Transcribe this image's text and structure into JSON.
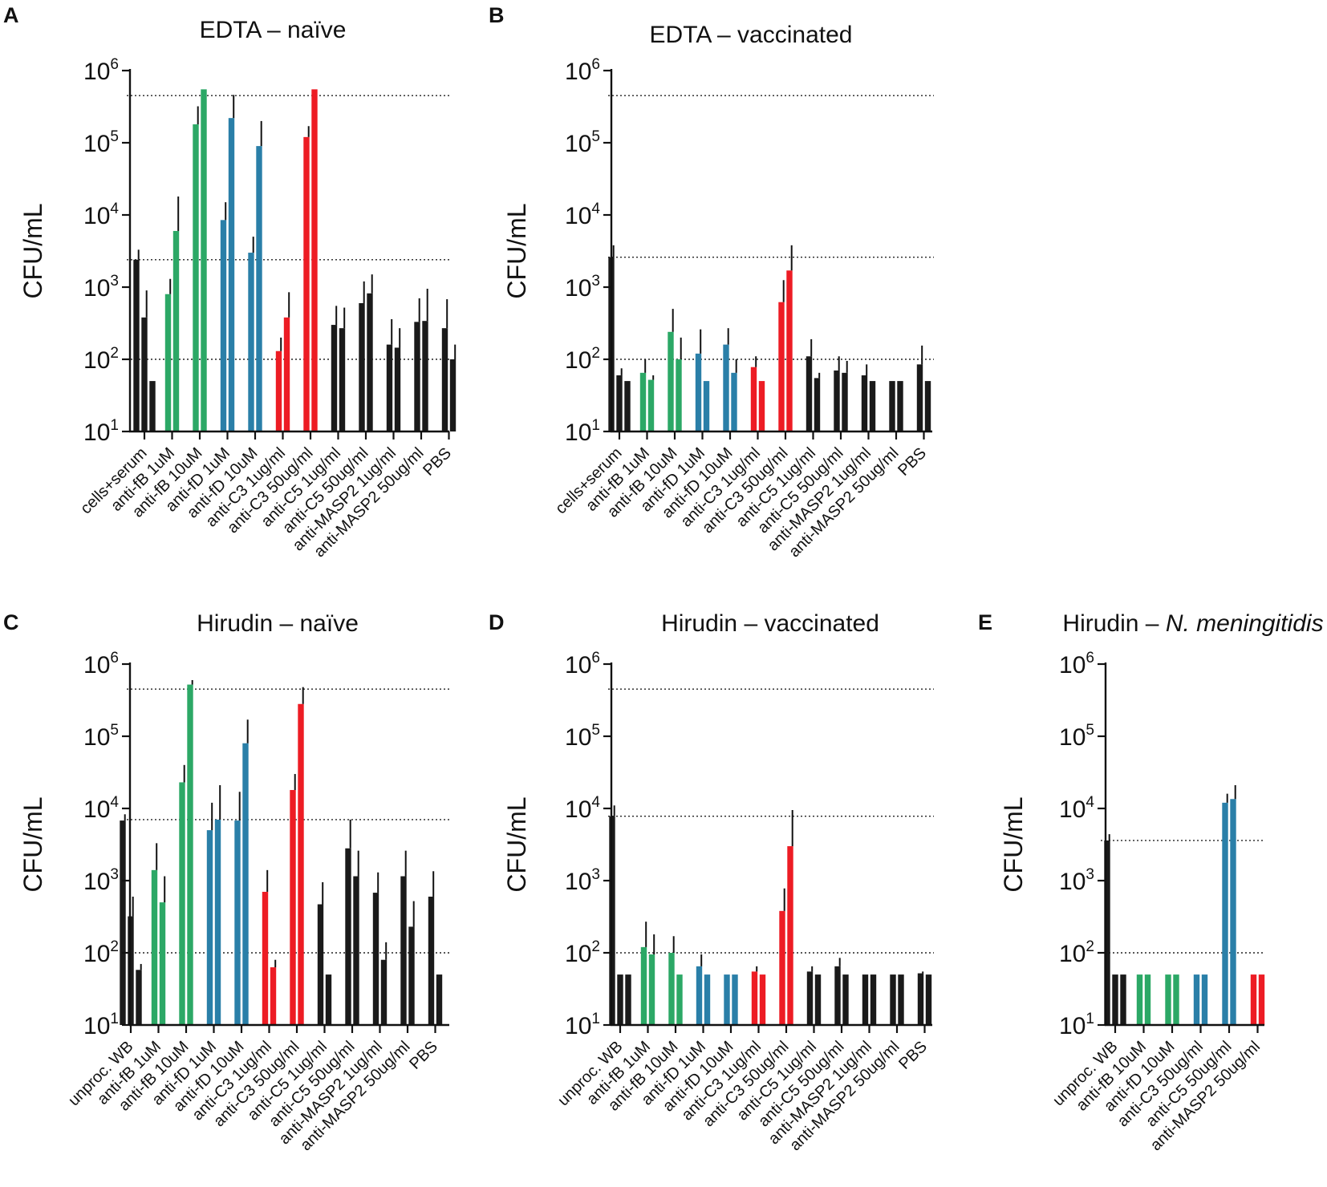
{
  "colors": {
    "black": "#1a1a1a",
    "green": "#2ca866",
    "blue": "#2a7fa8",
    "red": "#ed1c24",
    "yellow": "#f2ea1d",
    "orange": "#f58220",
    "beige": "#eeeacb"
  },
  "chart_data": [
    {
      "panel": "A",
      "type": "bar",
      "title": "EDTA – naïve",
      "ylabel": "CFU/mL",
      "yscale": "log",
      "ylim": [
        10,
        1000000
      ],
      "ytick_labels": [
        {
          "base": "10",
          "exp": "1"
        },
        {
          "base": "10",
          "exp": "2"
        },
        {
          "base": "10",
          "exp": "3"
        },
        {
          "base": "10",
          "exp": "4"
        },
        {
          "base": "10",
          "exp": "5"
        },
        {
          "base": "10",
          "exp": "6"
        }
      ],
      "reference_lines": [
        450000,
        2400,
        100
      ],
      "categories": [
        "cells+serum",
        "anti-fB 1uM",
        "anti-fB 10uM",
        "anti-fD 1uM",
        "anti-fD 10uM",
        "anti-C3 1ug/ml",
        "anti-C3 50ug/ml",
        "anti-C5 1ug/ml",
        "anti-C5 50ug/ml",
        "anti-MASP2 1ug/ml",
        "anti-MASP2 50ug/ml",
        "PBS"
      ],
      "group_colors": [
        "black",
        "green",
        "blue",
        "red",
        "yellow",
        "orange",
        "beige"
      ],
      "bars": [
        [
          [
            2400,
            3300
          ],
          [
            380,
            900
          ],
          [
            50,
            null
          ]
        ],
        [
          [
            800,
            1300
          ],
          [
            6000,
            18000
          ]
        ],
        [
          [
            180000,
            320000
          ],
          [
            550000,
            null
          ]
        ],
        [
          [
            8500,
            15000
          ],
          [
            220000,
            460000
          ]
        ],
        [
          [
            3000,
            5000
          ],
          [
            90000,
            200000
          ]
        ],
        [
          [
            130,
            200
          ],
          [
            380,
            850
          ]
        ],
        [
          [
            120000,
            170000
          ],
          [
            550000,
            null
          ]
        ],
        [
          [
            300,
            550
          ],
          [
            270,
            520
          ]
        ],
        [
          [
            600,
            1200
          ],
          [
            820,
            1500
          ]
        ],
        [
          [
            160,
            360
          ],
          [
            145,
            270
          ]
        ],
        [
          [
            330,
            700
          ],
          [
            340,
            950
          ]
        ],
        [
          [
            270,
            680
          ],
          [
            100,
            160
          ]
        ]
      ]
    },
    {
      "panel": "B",
      "type": "bar",
      "title": "EDTA – vaccinated",
      "ylabel": "CFU/mL",
      "yscale": "log",
      "ylim": [
        10,
        1000000
      ],
      "ytick_labels": [
        {
          "base": "10",
          "exp": "1"
        },
        {
          "base": "10",
          "exp": "2"
        },
        {
          "base": "10",
          "exp": "3"
        },
        {
          "base": "10",
          "exp": "4"
        },
        {
          "base": "10",
          "exp": "5"
        },
        {
          "base": "10",
          "exp": "6"
        }
      ],
      "reference_lines": [
        450000,
        2600,
        100
      ],
      "categories": [
        "cells+serum",
        "anti-fB 1uM",
        "anti-fB 10uM",
        "anti-fD 1uM",
        "anti-fD 10uM",
        "anti-C3 1ug/ml",
        "anti-C3 50ug/ml",
        "anti-C5 1ug/ml",
        "anti-C5 50ug/ml",
        "anti-MASP2 1ug/ml",
        "anti-MASP2 50ug/ml",
        "PBS"
      ],
      "group_colors": [
        "black",
        "green",
        "blue",
        "red",
        "yellow",
        "orange",
        "beige"
      ],
      "bars": [
        [
          [
            2600,
            3800
          ],
          [
            60,
            75
          ],
          [
            50,
            null
          ]
        ],
        [
          [
            65,
            100
          ],
          [
            52,
            60
          ]
        ],
        [
          [
            240,
            500
          ],
          [
            100,
            200
          ]
        ],
        [
          [
            120,
            260
          ],
          [
            50,
            null
          ]
        ],
        [
          [
            160,
            270
          ],
          [
            65,
            100
          ]
        ],
        [
          [
            78,
            110
          ],
          [
            50,
            null
          ]
        ],
        [
          [
            620,
            1250
          ],
          [
            1700,
            3800
          ]
        ],
        [
          [
            110,
            190
          ],
          [
            55,
            65
          ]
        ],
        [
          [
            70,
            110
          ],
          [
            65,
            95
          ]
        ],
        [
          [
            60,
            85
          ],
          [
            50,
            null
          ]
        ],
        [
          [
            50,
            null
          ],
          [
            50,
            null
          ]
        ],
        [
          [
            85,
            155
          ],
          [
            50,
            null
          ]
        ]
      ]
    },
    {
      "panel": "C",
      "type": "bar",
      "title": "Hirudin – naïve",
      "ylabel": "CFU/mL",
      "yscale": "log",
      "ylim": [
        10,
        1000000
      ],
      "ytick_labels": [
        {
          "base": "10",
          "exp": "1"
        },
        {
          "base": "10",
          "exp": "2"
        },
        {
          "base": "10",
          "exp": "3"
        },
        {
          "base": "10",
          "exp": "4"
        },
        {
          "base": "10",
          "exp": "5"
        },
        {
          "base": "10",
          "exp": "6"
        }
      ],
      "reference_lines": [
        450000,
        7000,
        100
      ],
      "categories": [
        "unproc. WB",
        "anti-fB 1uM",
        "anti-fB 10uM",
        "anti-fD 1uM",
        "anti-fD 10uM",
        "anti-C3 1ug/ml",
        "anti-C3 50ug/ml",
        "anti-C5 1ug/ml",
        "anti-C5 50ug/ml",
        "anti-MASP2 1ug/ml",
        "anti-MASP2 50ug/ml",
        "PBS"
      ],
      "group_colors": [
        "black",
        "green",
        "blue",
        "red",
        "yellow",
        "orange",
        "beige"
      ],
      "bars": [
        [
          [
            6800,
            8300
          ],
          [
            320,
            600
          ],
          [
            58,
            70
          ]
        ],
        [
          [
            1400,
            3300
          ],
          [
            500,
            1150
          ]
        ],
        [
          [
            23000,
            40000
          ],
          [
            520000,
            600000
          ]
        ],
        [
          [
            5000,
            12000
          ],
          [
            7000,
            21000
          ]
        ],
        [
          [
            6800,
            17000
          ],
          [
            80000,
            170000
          ]
        ],
        [
          [
            700,
            1400
          ],
          [
            63,
            80
          ]
        ],
        [
          [
            18000,
            30000
          ],
          [
            280000,
            480000
          ]
        ],
        [
          [
            470,
            950
          ],
          [
            50,
            null
          ]
        ],
        [
          [
            2800,
            7000
          ],
          [
            1150,
            2600
          ]
        ],
        [
          [
            680,
            1300
          ],
          [
            80,
            140
          ]
        ],
        [
          [
            1150,
            2600
          ],
          [
            230,
            520
          ]
        ],
        [
          [
            600,
            1350
          ],
          [
            50,
            null
          ]
        ]
      ]
    },
    {
      "panel": "D",
      "type": "bar",
      "title": "Hirudin – vaccinated",
      "ylabel": "CFU/mL",
      "yscale": "log",
      "ylim": [
        10,
        1000000
      ],
      "ytick_labels": [
        {
          "base": "10",
          "exp": "1"
        },
        {
          "base": "10",
          "exp": "2"
        },
        {
          "base": "10",
          "exp": "3"
        },
        {
          "base": "10",
          "exp": "4"
        },
        {
          "base": "10",
          "exp": "5"
        },
        {
          "base": "10",
          "exp": "6"
        }
      ],
      "reference_lines": [
        450000,
        7800,
        100
      ],
      "categories": [
        "unproc. WB",
        "anti-fB 1uM",
        "anti-fB 10uM",
        "anti-fD 1uM",
        "anti-fD 10uM",
        "anti-C3 1ug/ml",
        "anti-C3 50ug/ml",
        "anti-C5 1ug/ml",
        "anti-C5 50ug/ml",
        "anti-MASP2 1ug/ml",
        "anti-MASP2 50ug/ml",
        "PBS"
      ],
      "group_colors": [
        "black",
        "green",
        "blue",
        "red",
        "yellow",
        "orange",
        "beige"
      ],
      "bars": [
        [
          [
            7800,
            11000
          ],
          [
            50,
            null
          ],
          [
            50,
            null
          ]
        ],
        [
          [
            120,
            270
          ],
          [
            95,
            180
          ]
        ],
        [
          [
            100,
            170
          ],
          [
            50,
            null
          ]
        ],
        [
          [
            65,
            95
          ],
          [
            50,
            null
          ]
        ],
        [
          [
            50,
            null
          ],
          [
            50,
            null
          ]
        ],
        [
          [
            55,
            65
          ],
          [
            50,
            null
          ]
        ],
        [
          [
            380,
            780
          ],
          [
            3000,
            9500
          ]
        ],
        [
          [
            55,
            65
          ],
          [
            50,
            null
          ]
        ],
        [
          [
            65,
            85
          ],
          [
            50,
            null
          ]
        ],
        [
          [
            50,
            null
          ],
          [
            50,
            null
          ]
        ],
        [
          [
            50,
            null
          ],
          [
            50,
            null
          ]
        ],
        [
          [
            52,
            55
          ],
          [
            50,
            null
          ]
        ]
      ]
    },
    {
      "panel": "E",
      "type": "bar",
      "title": "Hirudin – ",
      "title_italic": "N. meningitidis",
      "ylabel": "CFU/mL",
      "yscale": "log",
      "ylim": [
        10,
        1000000
      ],
      "ytick_labels": [
        {
          "base": "10",
          "exp": "1"
        },
        {
          "base": "10",
          "exp": "2"
        },
        {
          "base": "10",
          "exp": "3"
        },
        {
          "base": "10",
          "exp": "4"
        },
        {
          "base": "10",
          "exp": "5"
        },
        {
          "base": "10",
          "exp": "6"
        }
      ],
      "reference_lines": [
        3600,
        100
      ],
      "categories": [
        "unproc. WB",
        "anti-fB 10uM",
        "anti-fD 10uM",
        "anti-C3 50ug/ml",
        "anti-C5 50ug/ml",
        "anti-MASP2 50ug/ml"
      ],
      "group_colors": [
        "black",
        "green",
        "blue",
        "red",
        "yellow",
        "orange"
      ],
      "bars": [
        [
          [
            3600,
            4400
          ],
          [
            50,
            null
          ],
          [
            50,
            null
          ]
        ],
        [
          [
            50,
            null
          ],
          [
            50,
            null
          ]
        ],
        [
          [
            50,
            null
          ],
          [
            50,
            null
          ]
        ],
        [
          [
            50,
            null
          ],
          [
            50,
            null
          ]
        ],
        [
          [
            12000,
            16000
          ],
          [
            13500,
            21000
          ]
        ],
        [
          [
            50,
            null
          ],
          [
            50,
            null
          ]
        ]
      ]
    }
  ]
}
